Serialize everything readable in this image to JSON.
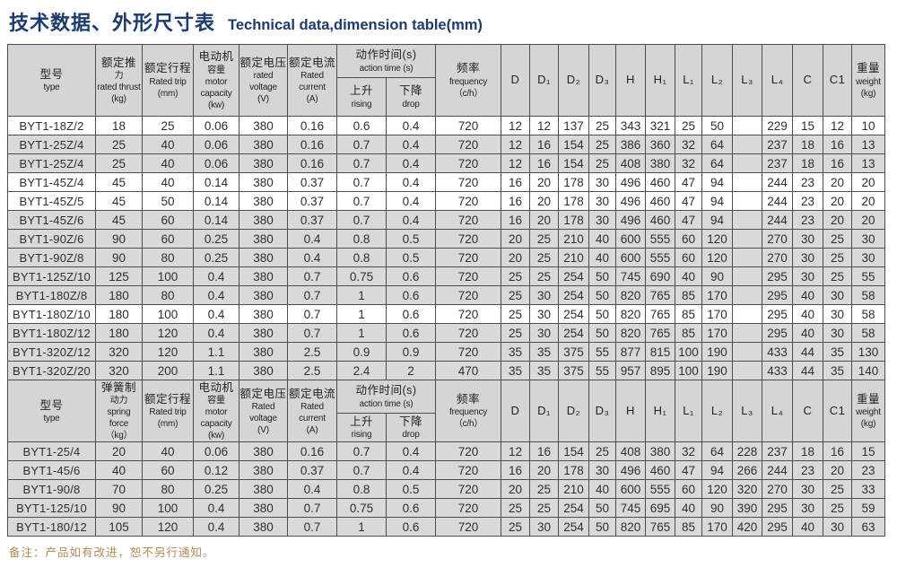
{
  "title": {
    "zh": "技术数据、外形尺寸表",
    "en": "Technical data,dimension table(mm)"
  },
  "table1": {
    "header": {
      "type": "型号\ntype",
      "thrust": "额定推力\nrated thrust\n(kg)",
      "trip": "额定行程\nRated trip\n(mm)",
      "motor": "电动机\n容量\nmotor\ncapacity\n(kw)",
      "voltage": "额定电压\nrated voltage\n(V)",
      "current": "额定电流\nRated current\n(A)",
      "action_time": "动作时间(s)\naction time (s)",
      "rising": "上升\nrising",
      "drop": "下降\ndrop",
      "frequency": "频率\nfrequency\n（c/h）",
      "dims": [
        "D",
        "D₁",
        "D₂",
        "D₃",
        "H",
        "H₁",
        "L₁",
        "L₂",
        "L₃",
        "L₄",
        "C",
        "C1"
      ],
      "weight": "重量\nweight\n(kg)"
    },
    "rows": [
      {
        "shade": "white",
        "cells": [
          "BYT1-18Z/2",
          "18",
          "25",
          "0.06",
          "380",
          "0.16",
          "0.6",
          "0.4",
          "720",
          "12",
          "12",
          "137",
          "25",
          "343",
          "321",
          "25",
          "50",
          "",
          "229",
          "15",
          "12",
          "10"
        ]
      },
      {
        "shade": "gray",
        "cells": [
          "BYT1-25Z/4",
          "25",
          "40",
          "0.06",
          "380",
          "0.16",
          "0.7",
          "0.4",
          "720",
          "12",
          "16",
          "154",
          "25",
          "386",
          "360",
          "32",
          "64",
          "",
          "237",
          "18",
          "16",
          "13"
        ]
      },
      {
        "shade": "gray",
        "cells": [
          "BYT1-25Z/4",
          "25",
          "40",
          "0.06",
          "380",
          "0.16",
          "0.7",
          "0.4",
          "720",
          "12",
          "16",
          "154",
          "25",
          "408",
          "380",
          "32",
          "64",
          "",
          "237",
          "18",
          "16",
          "13"
        ]
      },
      {
        "shade": "white",
        "cells": [
          "BYT1-45Z/4",
          "45",
          "40",
          "0.14",
          "380",
          "0.37",
          "0.7",
          "0.4",
          "720",
          "16",
          "20",
          "178",
          "30",
          "496",
          "460",
          "47",
          "94",
          "",
          "244",
          "23",
          "20",
          "20"
        ]
      },
      {
        "shade": "white",
        "cells": [
          "BYT1-45Z/5",
          "45",
          "50",
          "0.14",
          "380",
          "0.37",
          "0.7",
          "0.4",
          "720",
          "16",
          "20",
          "178",
          "30",
          "496",
          "460",
          "47",
          "94",
          "",
          "244",
          "23",
          "20",
          "20"
        ]
      },
      {
        "shade": "gray",
        "cells": [
          "BYT1-45Z/6",
          "45",
          "60",
          "0.14",
          "380",
          "0.37",
          "0.7",
          "0.4",
          "720",
          "16",
          "20",
          "178",
          "30",
          "496",
          "460",
          "47",
          "94",
          "",
          "244",
          "23",
          "20",
          "20"
        ]
      },
      {
        "shade": "gray",
        "cells": [
          "BYT1-90Z/6",
          "90",
          "60",
          "0.25",
          "380",
          "0.4",
          "0.8",
          "0.5",
          "720",
          "20",
          "25",
          "210",
          "40",
          "600",
          "555",
          "60",
          "120",
          "",
          "270",
          "30",
          "25",
          "30"
        ]
      },
      {
        "shade": "gray",
        "cells": [
          "BYT1-90Z/8",
          "90",
          "80",
          "0.25",
          "380",
          "0.4",
          "0.8",
          "0.5",
          "720",
          "20",
          "25",
          "210",
          "40",
          "600",
          "555",
          "60",
          "120",
          "",
          "270",
          "30",
          "25",
          "30"
        ]
      },
      {
        "shade": "gray",
        "cells": [
          "BYT1-125Z/10",
          "125",
          "100",
          "0.4",
          "380",
          "0.7",
          "0.75",
          "0.6",
          "720",
          "25",
          "25",
          "254",
          "50",
          "745",
          "690",
          "40",
          "90",
          "",
          "295",
          "30",
          "25",
          "55"
        ]
      },
      {
        "shade": "gray",
        "cells": [
          "BYT1-180Z/8",
          "180",
          "80",
          "0.4",
          "380",
          "0.7",
          "1",
          "0.6",
          "720",
          "25",
          "30",
          "254",
          "50",
          "820",
          "765",
          "85",
          "170",
          "",
          "295",
          "40",
          "30",
          "58"
        ]
      },
      {
        "shade": "white",
        "cells": [
          "BYT1-180Z/10",
          "180",
          "100",
          "0.4",
          "380",
          "0.7",
          "1",
          "0.6",
          "720",
          "25",
          "30",
          "254",
          "50",
          "820",
          "765",
          "85",
          "170",
          "",
          "295",
          "40",
          "30",
          "58"
        ]
      },
      {
        "shade": "gray",
        "cells": [
          "BYT1-180Z/12",
          "180",
          "120",
          "0.4",
          "380",
          "0.7",
          "1",
          "0.6",
          "720",
          "25",
          "30",
          "254",
          "50",
          "820",
          "765",
          "85",
          "170",
          "",
          "295",
          "40",
          "30",
          "58"
        ]
      },
      {
        "shade": "gray",
        "cells": [
          "BYT1-320Z/12",
          "320",
          "120",
          "1.1",
          "380",
          "2.5",
          "0.9",
          "0.9",
          "720",
          "35",
          "35",
          "375",
          "55",
          "877",
          "815",
          "100",
          "190",
          "",
          "433",
          "44",
          "35",
          "130"
        ]
      },
      {
        "shade": "gray",
        "cells": [
          "BYT1-320Z/20",
          "320",
          "200",
          "1.1",
          "380",
          "2.5",
          "2.4",
          "2",
          "470",
          "35",
          "35",
          "375",
          "55",
          "957",
          "895",
          "100",
          "190",
          "",
          "433",
          "44",
          "35",
          "140"
        ]
      }
    ]
  },
  "table2": {
    "header": {
      "type": "型号\ntype",
      "spring": "弹簧制\n动力\nspring\nforce\n（kg）",
      "trip": "额定行程\nRated trip\n(mm)",
      "motor": "电动机\n容量\nmotor\ncapacity\n(kw)",
      "voltage": "额定电压\nRated voltage\n(V)",
      "current": "额定电流\nRated current\n(A)",
      "action_time": "动作时间(s)\naction time (s)",
      "rising": "上升\nrising",
      "drop": "下降\ndrop",
      "frequency": "频率\nfrequency\n（c/h）",
      "dims": [
        "D",
        "D₁",
        "D₂",
        "D₃",
        "H",
        "H₁",
        "L₁",
        "L₂",
        "L₃",
        "L₄",
        "C",
        "C1"
      ],
      "weight": "重量\nweight\n(kg)"
    },
    "rows": [
      {
        "shade": "gray",
        "cells": [
          "BYT1-25/4",
          "20",
          "40",
          "0.06",
          "380",
          "0.16",
          "0.7",
          "0.4",
          "720",
          "12",
          "16",
          "154",
          "25",
          "408",
          "380",
          "32",
          "64",
          "228",
          "237",
          "18",
          "16",
          "15"
        ]
      },
      {
        "shade": "gray",
        "cells": [
          "BYT1-45/6",
          "40",
          "60",
          "0.12",
          "380",
          "0.37",
          "0.7",
          "0.4",
          "720",
          "16",
          "20",
          "178",
          "30",
          "496",
          "460",
          "47",
          "94",
          "266",
          "244",
          "23",
          "20",
          "23"
        ]
      },
      {
        "shade": "gray",
        "cells": [
          "BYT1-90/8",
          "70",
          "80",
          "0.25",
          "380",
          "0.4",
          "0.8",
          "0.5",
          "720",
          "20",
          "25",
          "210",
          "40",
          "600",
          "555",
          "60",
          "120",
          "320",
          "270",
          "30",
          "25",
          "33"
        ]
      },
      {
        "shade": "gray",
        "cells": [
          "BYT1-125/10",
          "90",
          "100",
          "0.4",
          "380",
          "0.7",
          "0.75",
          "0.6",
          "720",
          "25",
          "25",
          "254",
          "50",
          "745",
          "695",
          "40",
          "90",
          "390",
          "295",
          "30",
          "25",
          "59"
        ]
      },
      {
        "shade": "gray",
        "cells": [
          "BYT1-180/12",
          "105",
          "120",
          "0.4",
          "380",
          "0.7",
          "1",
          "0.6",
          "720",
          "25",
          "30",
          "254",
          "50",
          "820",
          "765",
          "85",
          "170",
          "420",
          "295",
          "40",
          "30",
          "63"
        ]
      }
    ]
  },
  "note": "备注：产品如有改进，恕不另行通知。"
}
